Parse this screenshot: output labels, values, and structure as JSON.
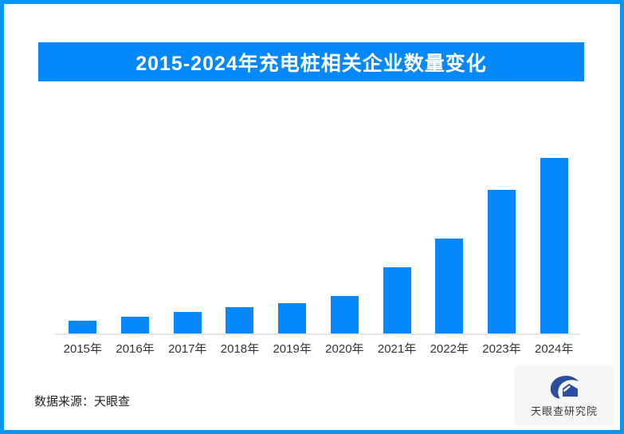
{
  "page": {
    "title_banner": "2015-2024年充电桩相关企业数量变化",
    "source_label": "数据来源：天眼查",
    "logo_text": "天眼查研究院"
  },
  "chart_data": {
    "type": "bar",
    "title": "2015-2024年充电桩相关企业数量变化",
    "categories": [
      "2015年",
      "2016年",
      "2017年",
      "2018年",
      "2019年",
      "2020年",
      "2021年",
      "2022年",
      "2023年",
      "2024年"
    ],
    "values": [
      16,
      21,
      27,
      33,
      38,
      47,
      83,
      119,
      180,
      220
    ],
    "value_note": "no y-axis shown; values are relative bar heights estimated in pixels",
    "xlabel": "",
    "ylabel": "",
    "ylim": [
      0,
      230
    ],
    "grid": false,
    "legend": false,
    "bar_color": "#0588fa"
  },
  "colors": {
    "frame_border": "#0595f9",
    "banner_bg": "#0588fa",
    "bar": "#0588fa",
    "axis_line": "#e4e4e4",
    "label_text": "#333333",
    "logo_navy": "#2b4f9e",
    "logo_bg": "#f7f7f7"
  },
  "icons": {
    "logo_icon": "tianyancha-eye-logo"
  }
}
